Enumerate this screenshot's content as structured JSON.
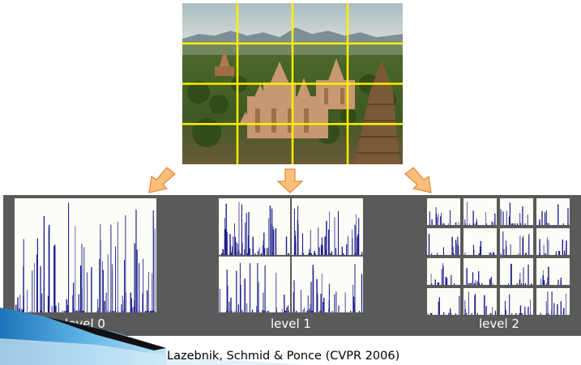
{
  "image": {
    "description": "photo-of-temples-with-grid",
    "grid_color": "#ffee00",
    "grid_columns": 4,
    "grid_rows": 4
  },
  "levels": [
    {
      "label": "level 0",
      "grid": 1
    },
    {
      "label": "level 1",
      "grid": 2
    },
    {
      "label": "level 2",
      "grid": 4
    }
  ],
  "citation": "Lazebnik, Schmid & Ponce (CVPR 2006)",
  "colors": {
    "panel": "#5a5a5a",
    "histogram_bg": "#fbfdf6",
    "histogram_bar": "#1a1a8c",
    "arrow_fill": "#fbbd7a",
    "arrow_stroke": "#e0893a"
  }
}
